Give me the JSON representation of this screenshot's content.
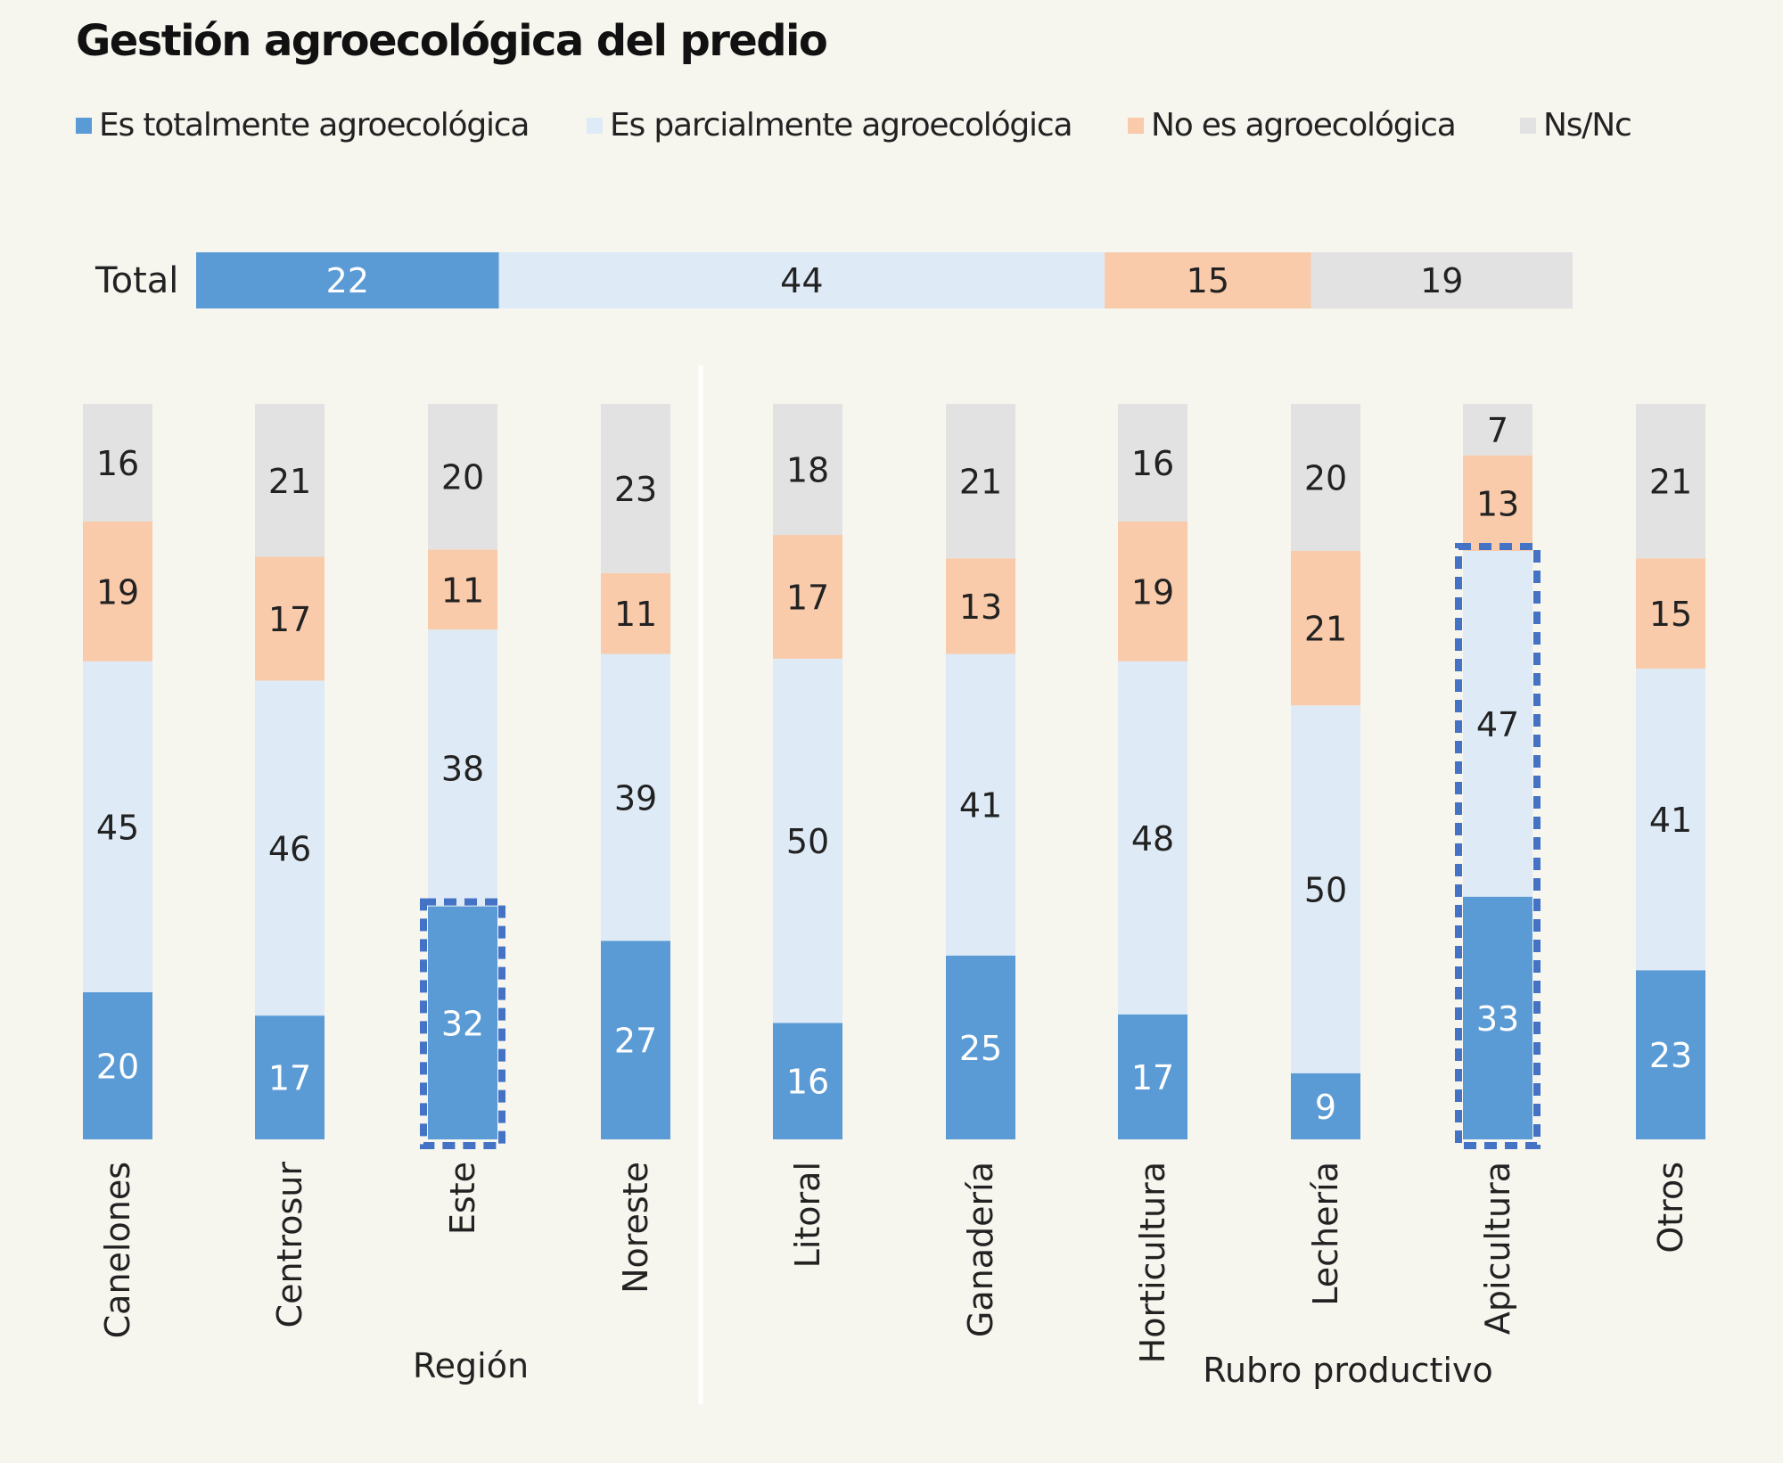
{
  "chart_data": {
    "type": "bar",
    "stacked": true,
    "percent": true,
    "title": "Gestión agroecológica del predio",
    "legend": {
      "position": "top",
      "entries": [
        "Es totalmente agroecológica",
        "Es parcialmente agroecológica",
        "No es agroecológica",
        "Ns/Nc"
      ]
    },
    "colors": [
      "#5b9bd5",
      "#deebf7",
      "#f9cbab",
      "#e2e2e2"
    ],
    "highlight_color": "#4472c4",
    "total": {
      "label": "Total",
      "values": [
        22,
        44,
        15,
        19
      ]
    },
    "groups": [
      {
        "label": "Región",
        "categories": [
          "Canelones",
          "Centrosur",
          "Este",
          "Noreste"
        ],
        "series": [
          {
            "name": "Es totalmente agroecológica",
            "values": [
              20,
              17,
              32,
              27
            ]
          },
          {
            "name": "Es parcialmente agroecológica",
            "values": [
              45,
              46,
              38,
              39
            ]
          },
          {
            "name": "No es agroecológica",
            "values": [
              19,
              17,
              11,
              11
            ]
          },
          {
            "name": "Ns/Nc",
            "values": [
              16,
              21,
              20,
              23
            ]
          }
        ]
      },
      {
        "label": "Rubro productivo",
        "categories": [
          "Litoral",
          "Ganadería",
          "Horticultura",
          "Lechería",
          "Apicultura",
          "Otros"
        ],
        "series": [
          {
            "name": "Es totalmente agroecológica",
            "values": [
              16,
              25,
              17,
              9,
              33,
              23
            ]
          },
          {
            "name": "Es parcialmente agroecológica",
            "values": [
              50,
              41,
              48,
              50,
              47,
              41
            ]
          },
          {
            "name": "No es agroecológica",
            "values": [
              17,
              13,
              19,
              21,
              13,
              15
            ]
          },
          {
            "name": "Ns/Nc",
            "values": [
              18,
              21,
              16,
              20,
              7,
              21
            ]
          }
        ]
      }
    ],
    "highlights": [
      {
        "category": "Este",
        "series": [
          "Es totalmente agroecológica"
        ]
      },
      {
        "category": "Apicultura",
        "series": [
          "Es totalmente agroecológica",
          "Es parcialmente agroecológica"
        ]
      }
    ]
  }
}
